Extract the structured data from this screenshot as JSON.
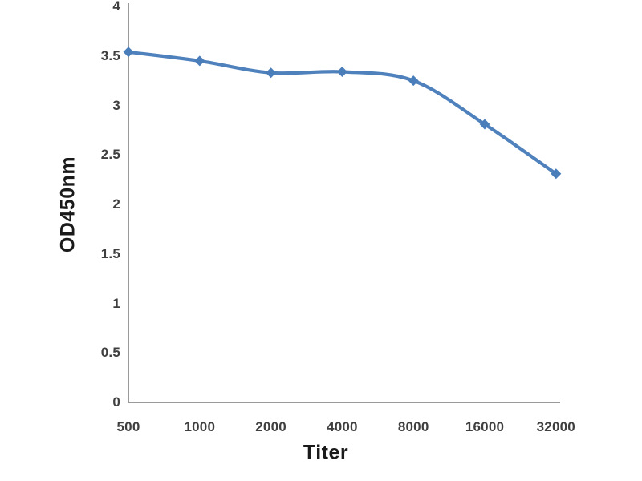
{
  "chart_data": {
    "type": "line",
    "title": "",
    "xlabel": "Titer",
    "ylabel": "OD450nm",
    "categories": [
      "500",
      "1000",
      "2000",
      "4000",
      "8000",
      "16000",
      "32000"
    ],
    "series": [
      {
        "name": "OD450nm",
        "values": [
          3.54,
          3.45,
          3.33,
          3.34,
          3.25,
          2.81,
          2.31
        ]
      }
    ],
    "ylim": [
      0,
      4
    ],
    "yticks": [
      0,
      0.5,
      1,
      1.5,
      2,
      2.5,
      3,
      3.5,
      4
    ],
    "grid": "off",
    "legend": "none",
    "smoothed_line": true,
    "marker": "diamond",
    "colors": {
      "line": "#4f81bd",
      "marker": "#4a7ebb",
      "axis": "#9a9a9a",
      "tick_label": "#3f3f3f",
      "axis_title": "#1a1a1a",
      "background": "#ffffff"
    }
  }
}
